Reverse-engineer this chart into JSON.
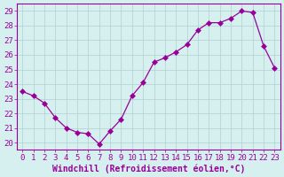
{
  "x": [
    0,
    1,
    2,
    3,
    4,
    5,
    6,
    7,
    8,
    9,
    10,
    11,
    12,
    13,
    14,
    15,
    16,
    17,
    18,
    19,
    20,
    21,
    22,
    23
  ],
  "y": [
    23.5,
    23.2,
    22.7,
    21.7,
    21.0,
    20.7,
    20.6,
    19.9,
    20.8,
    21.6,
    23.2,
    24.1,
    25.5,
    25.8,
    26.2,
    26.7,
    27.7,
    28.2,
    28.2,
    28.5,
    29.0,
    28.9,
    26.6,
    25.1
  ],
  "line_color": "#990099",
  "marker": "D",
  "marker_size": 3,
  "xlabel": "Windchill (Refroidissement éolien,°C)",
  "xlim": [
    -0.5,
    23.5
  ],
  "ylim": [
    19.5,
    29.5
  ],
  "yticks": [
    20,
    21,
    22,
    23,
    24,
    25,
    26,
    27,
    28,
    29
  ],
  "xticks": [
    0,
    1,
    2,
    3,
    4,
    5,
    6,
    7,
    8,
    9,
    10,
    11,
    12,
    13,
    14,
    15,
    16,
    17,
    18,
    19,
    20,
    21,
    22,
    23
  ],
  "bg_color": "#d6f0f0",
  "grid_color": "#b0d0d0",
  "axis_color": "#990099",
  "tick_color": "#990099",
  "label_color": "#990099",
  "font_size_xlabel": 7,
  "font_size_ticks": 6.5
}
